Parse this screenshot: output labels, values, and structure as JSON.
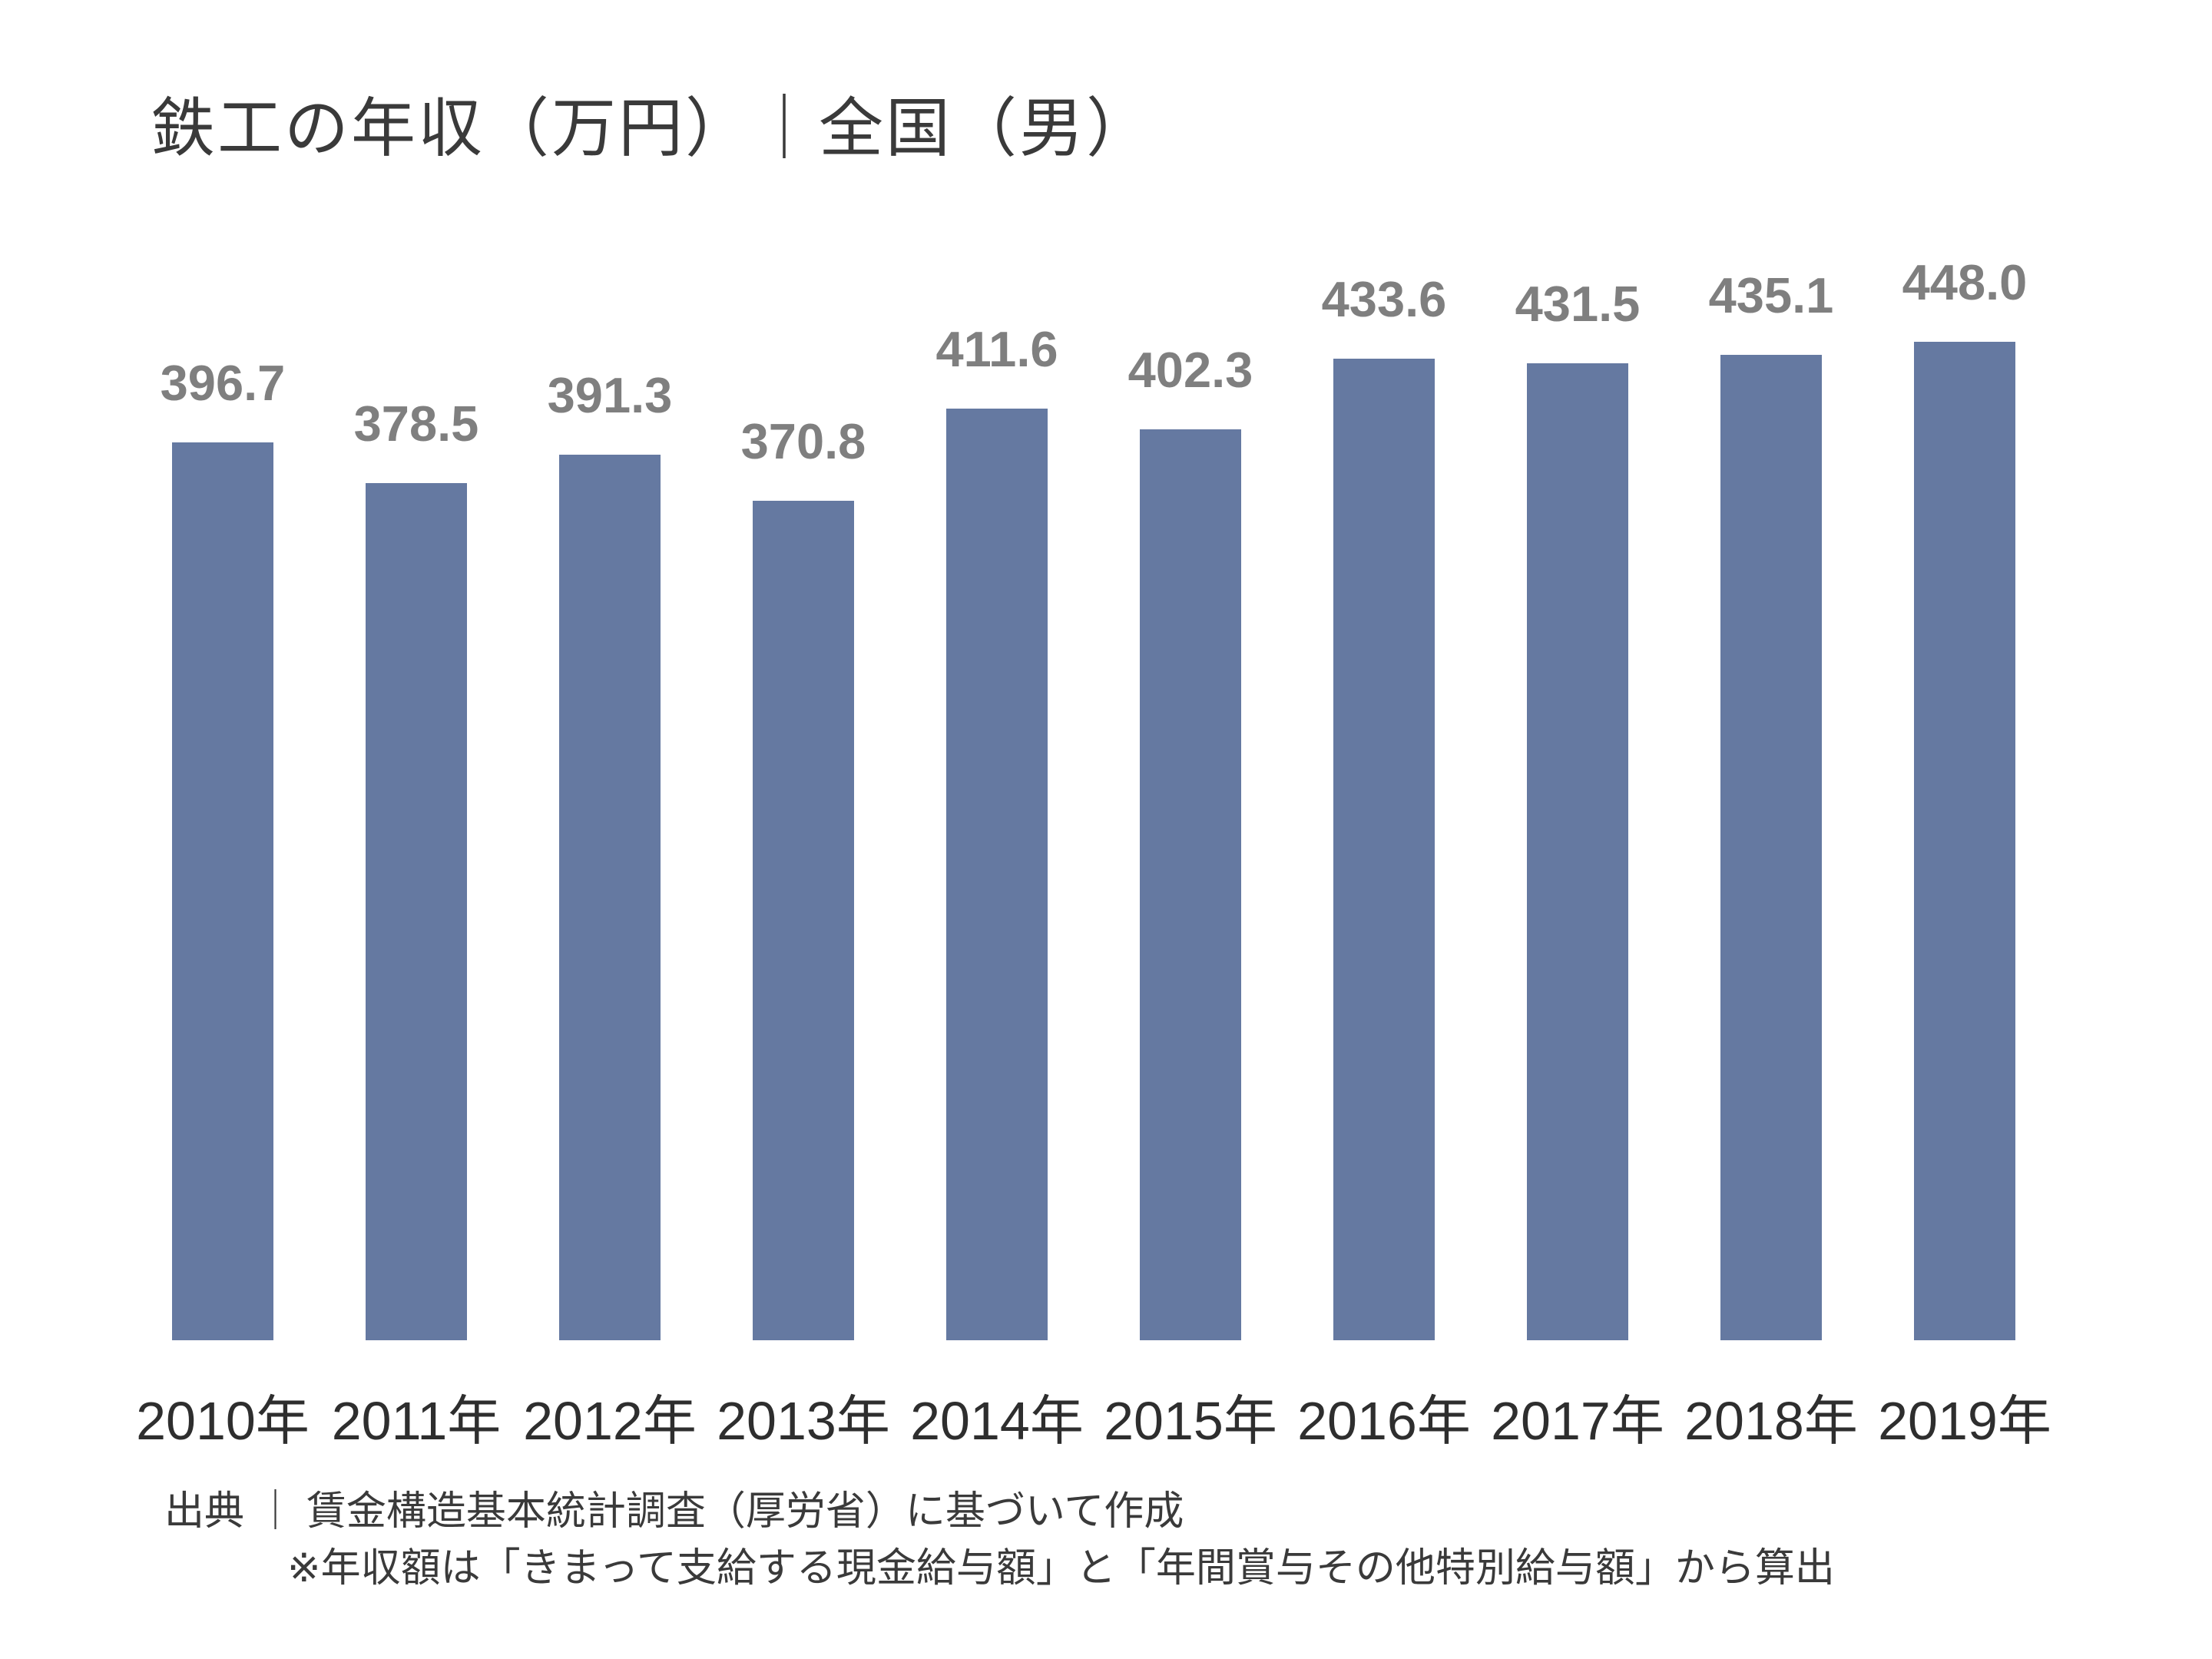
{
  "title": "鉄工の年収（万円）｜全国（男）",
  "notes": {
    "source": "出典 ｜ 賃金構造基本統計調査（厚労省）に基づいて作成",
    "method": "※年収額は「きまって支給する現金給与額」と「年間賞与その他特別給与額」から算出"
  },
  "colors": {
    "bar": "#6579a1",
    "value_label": "#7f7f7f",
    "axis_label": "#2e2e2e",
    "title": "#3a3a3a",
    "note": "#3a3a3a",
    "background": "#ffffff"
  },
  "chart_data": {
    "type": "bar",
    "title": "鉄工の年収（万円）｜全国（男）",
    "categories": [
      "2010年",
      "2011年",
      "2012年",
      "2013年",
      "2014年",
      "2015年",
      "2016年",
      "2017年",
      "2018年",
      "2019年"
    ],
    "values": [
      396.7,
      378.5,
      391.3,
      370.8,
      411.6,
      402.3,
      433.6,
      431.5,
      435.1,
      448.0
    ],
    "value_labels": [
      "396.7",
      "378.5",
      "391.3",
      "370.8",
      "411.6",
      "402.3",
      "433.6",
      "431.5",
      "435.1",
      "448.0"
    ],
    "xlabel": "",
    "ylabel": "",
    "ylim": [
      0,
      480
    ],
    "grid": false,
    "legend": false,
    "data_labels": true,
    "bar_color": "#6579a1"
  }
}
